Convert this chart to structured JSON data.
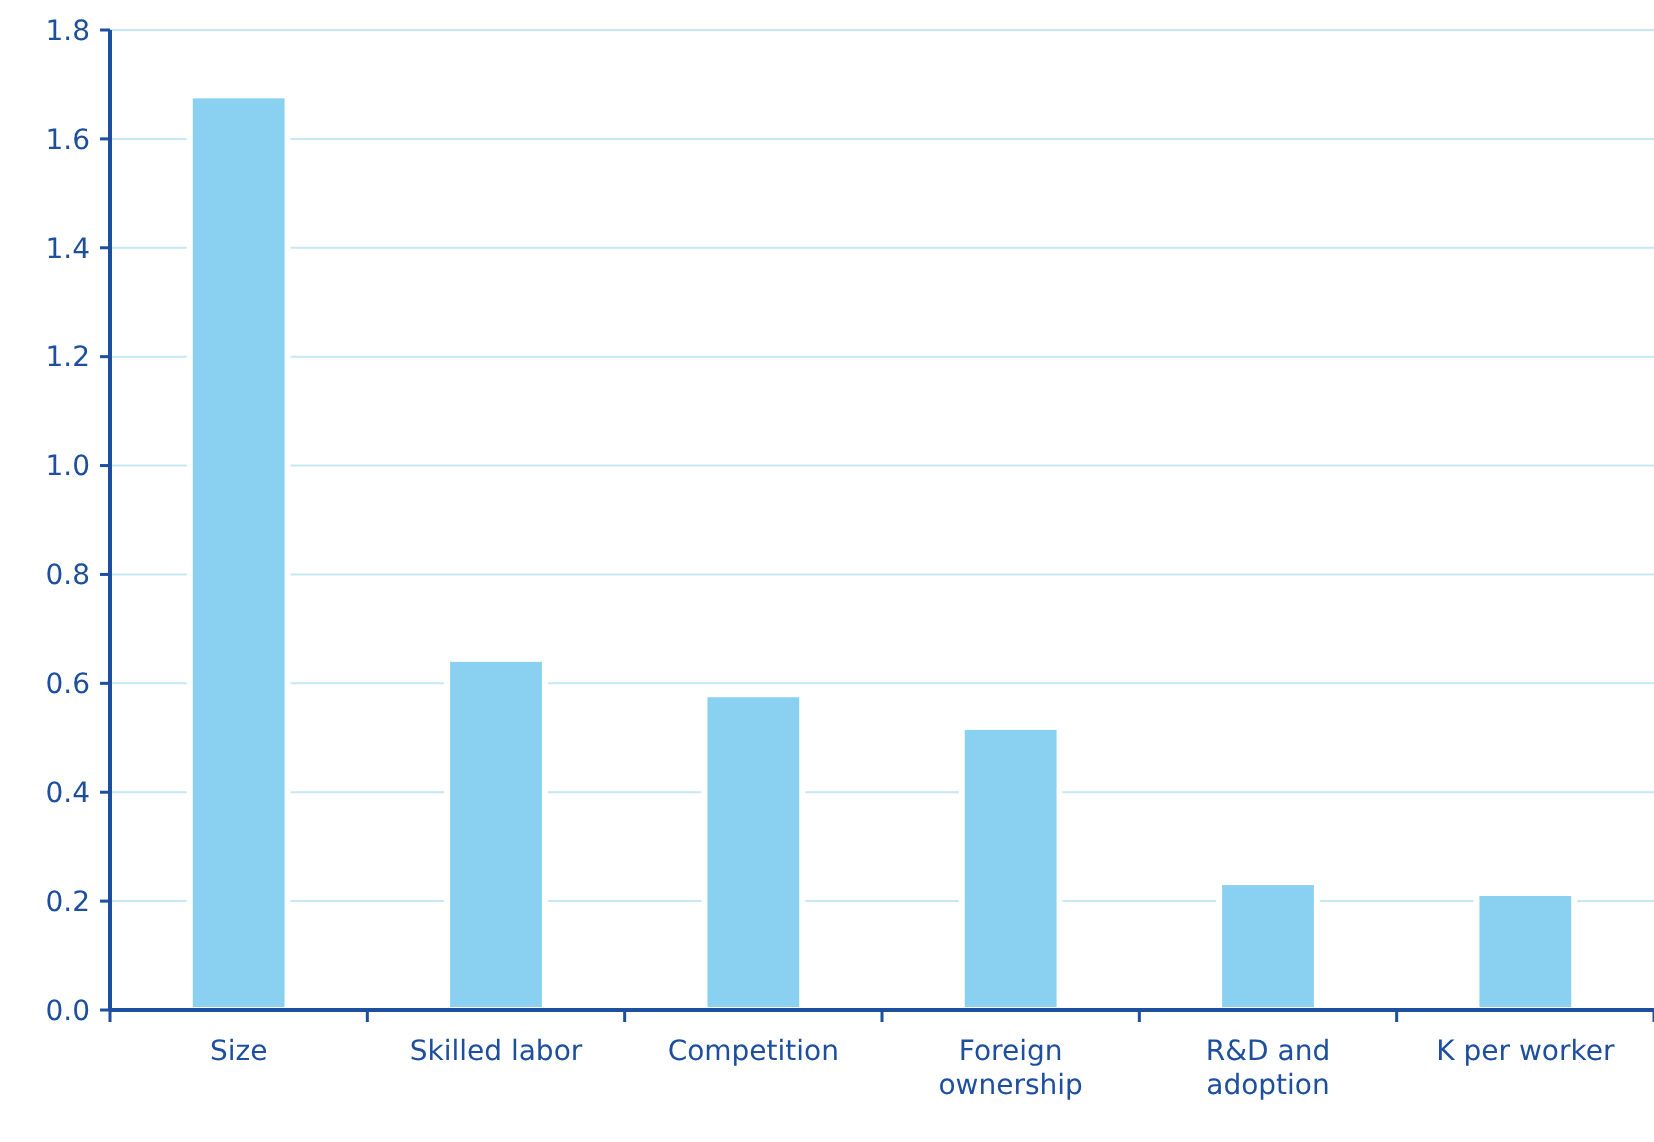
{
  "chart_data": {
    "type": "bar",
    "categories": [
      "Size",
      "Skilled labor",
      "Competition",
      "Foreign ownership",
      "R&D and adoption",
      "K per worker"
    ],
    "values": [
      1.68,
      0.645,
      0.58,
      0.52,
      0.235,
      0.215
    ],
    "color": "#8ad1f1",
    "ylim": [
      0,
      1.8
    ],
    "yticks": [
      {
        "value": 0,
        "label": "0.0"
      },
      0.2,
      0.4,
      0.6,
      0.8,
      {
        "value": 1,
        "label": "1.0"
      },
      1.2,
      1.4,
      1.6,
      1.8
    ],
    "grid": "y"
  }
}
